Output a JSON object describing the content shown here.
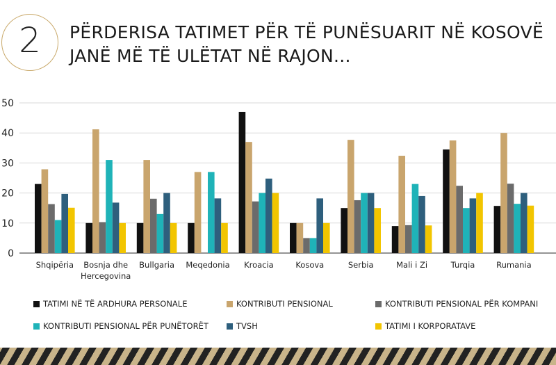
{
  "badge_number": "2",
  "title_lines": [
    "PËRDERISA TATIMET PËR TË PUNËSUARIT NË KOSOVË",
    "JANË MË TË ULËTAT NË RAJON..."
  ],
  "chart_data": {
    "type": "bar",
    "title": "",
    "xlabel": "",
    "ylabel": "",
    "ylim": [
      0,
      50
    ],
    "yticks": [
      0,
      10,
      20,
      30,
      40,
      50
    ],
    "grid": true,
    "legend_position": "bottom",
    "categories": [
      "Shqipëria",
      "Bosnja dhe Hercegovina",
      "Bullgaria",
      "Meqedonia",
      "Kroacia",
      "Kosova",
      "Serbia",
      "Mali i Zi",
      "Turqia",
      "Rumania"
    ],
    "category_lines": [
      [
        "Shqipëria"
      ],
      [
        "Bosnja dhe",
        "Hercegovina"
      ],
      [
        "Bullgaria"
      ],
      [
        "Meqedonia"
      ],
      [
        "Kroacia"
      ],
      [
        "Kosova"
      ],
      [
        "Serbia"
      ],
      [
        "Mali i Zi"
      ],
      [
        "Turqia"
      ],
      [
        "Rumania"
      ]
    ],
    "series": [
      {
        "name": "TATIMI NË TË ARDHURA PERSONALE",
        "color": "#111111",
        "values": [
          23,
          10,
          10,
          10,
          47,
          10,
          15,
          9,
          34.5,
          15.7
        ]
      },
      {
        "name": "KONTRIBUTI PENSIONAL",
        "color": "#c9a56d",
        "values": [
          27.9,
          41.2,
          31,
          27,
          37,
          10,
          37.7,
          32.4,
          37.5,
          40
        ]
      },
      {
        "name": "KONTRIBUTI PENSIONAL PËR KOMPANI",
        "color": "#6b6b6b",
        "values": [
          16.3,
          10.3,
          18.1,
          0,
          17.2,
          5,
          17.6,
          9.3,
          22.4,
          23.1
        ]
      },
      {
        "name": "KONTRIBUTI PENSIONAL PËR PUNËTORËT",
        "color": "#1fb3b8",
        "values": [
          11,
          31,
          13,
          27,
          20,
          5,
          20,
          23,
          15,
          16.4
        ]
      },
      {
        "name": "TVSH",
        "color": "#2e5f7d",
        "values": [
          19.7,
          16.8,
          20,
          18.2,
          24.8,
          18.2,
          20,
          19,
          18.2,
          20
        ]
      },
      {
        "name": "TATIMI I KORPORATAVE",
        "color": "#f2c500",
        "values": [
          15.1,
          10,
          10,
          10,
          20,
          10,
          15,
          9.2,
          20,
          15.8
        ]
      }
    ]
  }
}
